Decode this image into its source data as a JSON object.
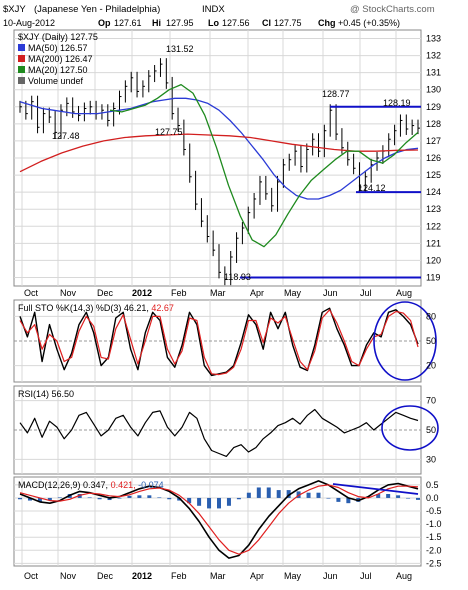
{
  "header": {
    "symbol": "$XJY",
    "name": "(Japanese Yen - Philadelphia)",
    "exchange": "INDX",
    "watermark": "@ StockCharts.com",
    "date": "10-Aug-2012",
    "op_label": "Op",
    "op": "127.61",
    "hi_label": "Hi",
    "hi": "127.95",
    "lo_label": "Lo",
    "lo": "127.56",
    "cl_label": "Cl",
    "cl": "127.75",
    "chg_label": "Chg",
    "chg": "+0.45 (+0.35%)"
  },
  "colors": {
    "price": "#000000",
    "ma50": "#2b3bd6",
    "ma200": "#d21f1f",
    "ma20": "#1e8a1e",
    "grid": "#d8d8d8",
    "annot": "#1010c8",
    "macd_hist": "#2a5fb0",
    "signal": "#e02020"
  },
  "legend": {
    "price": "$XJY (Daily) 127.75",
    "ma50": "MA(50) 126.57",
    "ma200": "MA(200) 126.47",
    "ma20": "MA(20) 127.50",
    "volume": "Volume undef"
  },
  "annotations": [
    "131.52",
    "128.77",
    "128.19",
    "127.48",
    "127.75",
    "124.12",
    "118.93"
  ],
  "x_labels": [
    "Oct",
    "Nov",
    "Dec",
    "2012",
    "Feb",
    "Mar",
    "Apr",
    "May",
    "Jun",
    "Jul",
    "Aug"
  ],
  "sto_legend": {
    "main": "Full STO %K(14,3) %D(3) 46.21,",
    "d": "42.67"
  },
  "rsi_legend": "RSI(14) 56.50",
  "macd_legend": {
    "main": "MACD(12,26,9) 0.347,",
    "signal": "0.421,",
    "hist": "-0.074"
  },
  "chart_data": [
    {
      "type": "line",
      "title": "$XJY (Japanese Yen - Philadelphia) INDX",
      "y_ticks": [
        119,
        120,
        121,
        122,
        123,
        124,
        125,
        126,
        127,
        128,
        129,
        130,
        131,
        132,
        133
      ],
      "ylim": [
        118.5,
        133.5
      ],
      "x_ticks": [
        "Oct",
        "Nov",
        "Dec",
        "2012",
        "Feb",
        "Mar",
        "Apr",
        "May",
        "Jun",
        "Jul",
        "Aug"
      ],
      "series": [
        {
          "name": "$XJY (Daily)",
          "values": [
            129.0,
            128.6,
            129.3,
            127.8,
            128.6,
            128.4,
            127.5,
            128.8,
            129.2,
            128.7,
            128.5,
            128.9,
            129.0,
            128.6,
            128.8,
            128.2,
            128.9,
            129.6,
            130.2,
            130.7,
            129.9,
            130.2,
            130.8,
            131.1,
            131.5,
            130.4,
            128.6,
            127.9,
            126.5,
            124.9,
            123.3,
            122.3,
            121.4,
            120.6,
            119.3,
            118.9,
            120.2,
            121.3,
            121.9,
            122.8,
            123.6,
            124.6,
            123.9,
            123.2,
            124.6,
            125.6,
            125.9,
            126.4,
            125.5,
            126.5,
            127.1,
            126.4,
            127.6,
            128.8,
            127.4,
            126.6,
            125.9,
            125.4,
            124.3,
            124.9,
            125.6,
            126.0,
            126.4,
            127.1,
            127.6,
            128.2,
            127.7,
            127.9,
            127.75
          ]
        },
        {
          "name": "MA(50)",
          "values": [
            129.3,
            129.1,
            128.9,
            128.8,
            128.7,
            128.6,
            128.6,
            128.6,
            128.7,
            128.8,
            128.9,
            129.1,
            129.3,
            129.4,
            129.5,
            129.5,
            129.4,
            129.2,
            128.8,
            128.2,
            127.5,
            126.7,
            125.9,
            125.0,
            124.3,
            123.8,
            123.6,
            123.6,
            123.8,
            124.1,
            124.6,
            125.1,
            125.6,
            126.0,
            126.3,
            126.5,
            126.57
          ]
        },
        {
          "name": "MA(200)",
          "values": [
            125.2,
            125.8,
            126.3,
            126.7,
            127.0,
            127.2,
            127.3,
            127.35,
            127.4,
            127.35,
            127.3,
            127.2,
            127.0,
            126.8,
            126.65,
            126.5,
            126.4,
            126.4,
            126.45,
            126.47
          ]
        },
        {
          "name": "MA(20)",
          "values": [
            128.8,
            128.7,
            128.9,
            129.1,
            129.5,
            130.0,
            130.3,
            129.8,
            128.5,
            126.6,
            124.4,
            122.6,
            121.2,
            120.8,
            121.5,
            122.7,
            123.8,
            124.7,
            125.3,
            125.9,
            126.4,
            126.4,
            125.9,
            125.7,
            126.2,
            126.9,
            127.5
          ]
        }
      ]
    },
    {
      "type": "line",
      "title": "Full STO %K(14,3) %D(3)",
      "y_ticks": [
        20,
        50,
        80
      ],
      "ylim": [
        0,
        100
      ],
      "series": [
        {
          "name": "%K",
          "values": [
            80,
            55,
            85,
            25,
            70,
            40,
            15,
            35,
            70,
            85,
            60,
            20,
            30,
            78,
            85,
            40,
            15,
            60,
            85,
            75,
            30,
            18,
            45,
            85,
            70,
            20,
            8,
            10,
            12,
            20,
            48,
            82,
            70,
            40,
            85,
            65,
            85,
            45,
            18,
            14,
            45,
            85,
            90,
            65,
            45,
            20,
            20,
            45,
            60,
            55,
            85,
            88,
            80,
            70,
            46.21
          ]
        },
        {
          "name": "%D",
          "values": [
            75,
            60,
            70,
            40,
            58,
            50,
            25,
            30,
            62,
            80,
            68,
            30,
            28,
            65,
            82,
            52,
            22,
            50,
            80,
            80,
            40,
            22,
            38,
            78,
            75,
            30,
            10,
            9,
            11,
            18,
            40,
            75,
            75,
            48,
            78,
            72,
            80,
            52,
            25,
            15,
            38,
            78,
            88,
            72,
            50,
            25,
            20,
            40,
            55,
            58,
            80,
            86,
            84,
            75,
            42.67
          ]
        }
      ]
    },
    {
      "type": "line",
      "title": "RSI(14)",
      "y_ticks": [
        30,
        50,
        70
      ],
      "ylim": [
        20,
        80
      ],
      "series": [
        {
          "name": "RSI(14)",
          "values": [
            55,
            48,
            58,
            45,
            56,
            52,
            44,
            50,
            60,
            62,
            54,
            46,
            50,
            58,
            60,
            52,
            46,
            55,
            62,
            63,
            52,
            46,
            52,
            62,
            58,
            44,
            36,
            34,
            32,
            38,
            40,
            35,
            38,
            44,
            48,
            53,
            55,
            58,
            54,
            60,
            64,
            58,
            55,
            52,
            48,
            50,
            52,
            55,
            50,
            54,
            58,
            62,
            60,
            58,
            56.5
          ]
        }
      ]
    },
    {
      "type": "line",
      "title": "MACD(12,26,9)",
      "y_ticks": [
        -2.5,
        -2.0,
        -1.5,
        -1.0,
        -0.5,
        0.0,
        0.5
      ],
      "ylim": [
        -2.6,
        0.8
      ],
      "series": [
        {
          "name": "MACD",
          "values": [
            0.15,
            0.0,
            -0.15,
            -0.2,
            -0.1,
            0.1,
            0.25,
            0.2,
            0.1,
            0.0,
            0.05,
            0.2,
            0.35,
            0.45,
            0.4,
            0.25,
            0.0,
            -0.4,
            -0.9,
            -1.5,
            -2.0,
            -2.3,
            -2.2,
            -1.8,
            -1.2,
            -0.7,
            -0.3,
            0.1,
            0.35,
            0.5,
            0.65,
            0.5,
            0.25,
            0.0,
            -0.1,
            0.05,
            0.3,
            0.5,
            0.55,
            0.45,
            0.347
          ]
        },
        {
          "name": "Signal",
          "values": [
            0.2,
            0.1,
            0.0,
            -0.1,
            -0.12,
            -0.05,
            0.1,
            0.18,
            0.15,
            0.08,
            0.05,
            0.12,
            0.25,
            0.35,
            0.38,
            0.3,
            0.1,
            -0.2,
            -0.6,
            -1.1,
            -1.6,
            -2.0,
            -2.15,
            -2.0,
            -1.6,
            -1.1,
            -0.6,
            -0.2,
            0.1,
            0.3,
            0.45,
            0.5,
            0.4,
            0.2,
            0.05,
            0.0,
            0.15,
            0.35,
            0.45,
            0.45,
            0.421
          ]
        },
        {
          "name": "Histogram",
          "values": [
            -0.05,
            -0.1,
            -0.15,
            -0.1,
            0.02,
            0.15,
            0.15,
            0.02,
            -0.05,
            -0.08,
            0.0,
            0.08,
            0.1,
            0.1,
            0.02,
            -0.05,
            -0.1,
            -0.2,
            -0.3,
            -0.4,
            -0.4,
            -0.3,
            -0.05,
            0.2,
            0.4,
            0.4,
            0.3,
            0.3,
            0.25,
            0.2,
            0.2,
            0.0,
            -0.15,
            -0.2,
            -0.15,
            0.05,
            0.15,
            0.15,
            0.1,
            0.0,
            -0.074
          ]
        }
      ]
    }
  ]
}
